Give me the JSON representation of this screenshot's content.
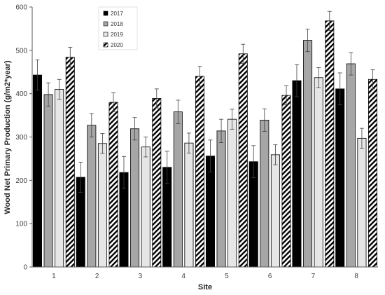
{
  "chart_data": {
    "type": "bar",
    "title": "",
    "xlabel": "Site",
    "ylabel": "Wood Net Primary Production (g/m2*year)",
    "ylim": [
      0,
      600
    ],
    "yticks": [
      0,
      100,
      200,
      300,
      400,
      500,
      600
    ],
    "categories": [
      "1",
      "2",
      "3",
      "4",
      "5",
      "6",
      "7",
      "8"
    ],
    "grid": false,
    "legend_position": "top-left",
    "error_bars": true,
    "series": [
      {
        "name": "2017",
        "color": "#000000",
        "pattern": "solid",
        "values": [
          443,
          207,
          218,
          230,
          256,
          243,
          430,
          411
        ],
        "errors": [
          35,
          35,
          37,
          37,
          37,
          37,
          37,
          37
        ]
      },
      {
        "name": "2018",
        "color": "#a6a6a6",
        "pattern": "solid",
        "values": [
          398,
          327,
          319,
          358,
          314,
          339,
          523,
          469
        ],
        "errors": [
          27,
          27,
          26,
          27,
          27,
          26,
          26,
          26
        ]
      },
      {
        "name": "2019",
        "color": "#e6e6e6",
        "pattern": "solid",
        "values": [
          410,
          285,
          277,
          286,
          341,
          259,
          437,
          297
        ],
        "errors": [
          23,
          23,
          23,
          23,
          23,
          23,
          23,
          23
        ]
      },
      {
        "name": "2020",
        "color": "#ffffff",
        "pattern": "diagonal-stripes",
        "values": [
          484,
          380,
          389,
          440,
          492,
          396,
          568,
          433
        ],
        "errors": [
          23,
          22,
          22,
          23,
          22,
          22,
          22,
          22
        ]
      }
    ]
  }
}
